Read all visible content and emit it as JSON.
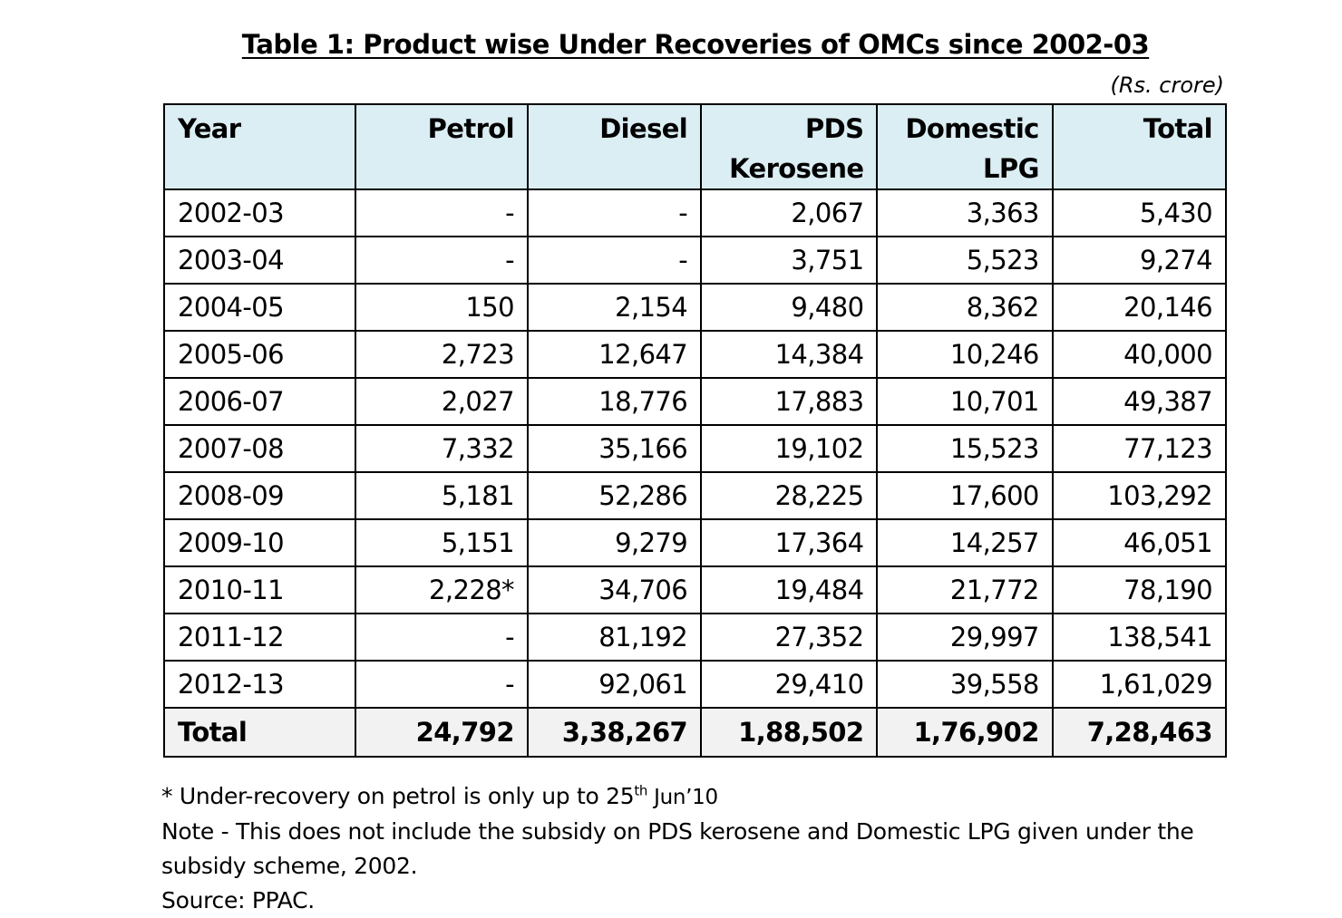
{
  "title": "Table 1: Product wise Under Recoveries of OMCs since 2002-03",
  "units": "(Rs.  crore)",
  "table": {
    "headers": [
      "Year",
      "Petrol",
      "Diesel",
      "PDS Kerosene",
      "Domestic LPG",
      "Total"
    ],
    "rows": [
      [
        "2002-03",
        "-",
        "-",
        "2,067",
        "3,363",
        "5,430"
      ],
      [
        "2003-04",
        "-",
        "-",
        "3,751",
        "5,523",
        "9,274"
      ],
      [
        "2004-05",
        "150",
        "2,154",
        "9,480",
        "8,362",
        "20,146"
      ],
      [
        "2005-06",
        "2,723",
        "12,647",
        "14,384",
        "10,246",
        "40,000"
      ],
      [
        "2006-07",
        "2,027",
        "18,776",
        "17,883",
        "10,701",
        "49,387"
      ],
      [
        "2007-08",
        "7,332",
        "35,166",
        "19,102",
        "15,523",
        "77,123"
      ],
      [
        "2008-09",
        "5,181",
        "52,286",
        "28,225",
        "17,600",
        "103,292"
      ],
      [
        "2009-10",
        "5,151",
        "9,279",
        "17,364",
        "14,257",
        "46,051"
      ],
      [
        "2010-11",
        "2,228*",
        "34,706",
        "19,484",
        "21,772",
        "78,190"
      ],
      [
        "2011-12",
        "-",
        "81,192",
        "27,352",
        "29,997",
        "138,541"
      ],
      [
        "2012-13",
        "-",
        "92,061",
        "29,410",
        "39,558",
        "1,61,029"
      ]
    ],
    "total_row": [
      "Total",
      "24,792",
      "3,38,267",
      "1,88,502",
      "1,76,902",
      "7,28,463"
    ]
  },
  "notes": {
    "footnote_prefix": "* Under-recovery on petrol is only up to 25",
    "footnote_sup": "th",
    "footnote_suffix": " Jun’10",
    "note": "Note - This does not include the subsidy on PDS kerosene and Domestic LPG given under the subsidy scheme, 2002.",
    "source": "Source: PPAC."
  },
  "colors": {
    "header_bg": "#dbeef4",
    "total_bg": "#f2f2f2"
  }
}
